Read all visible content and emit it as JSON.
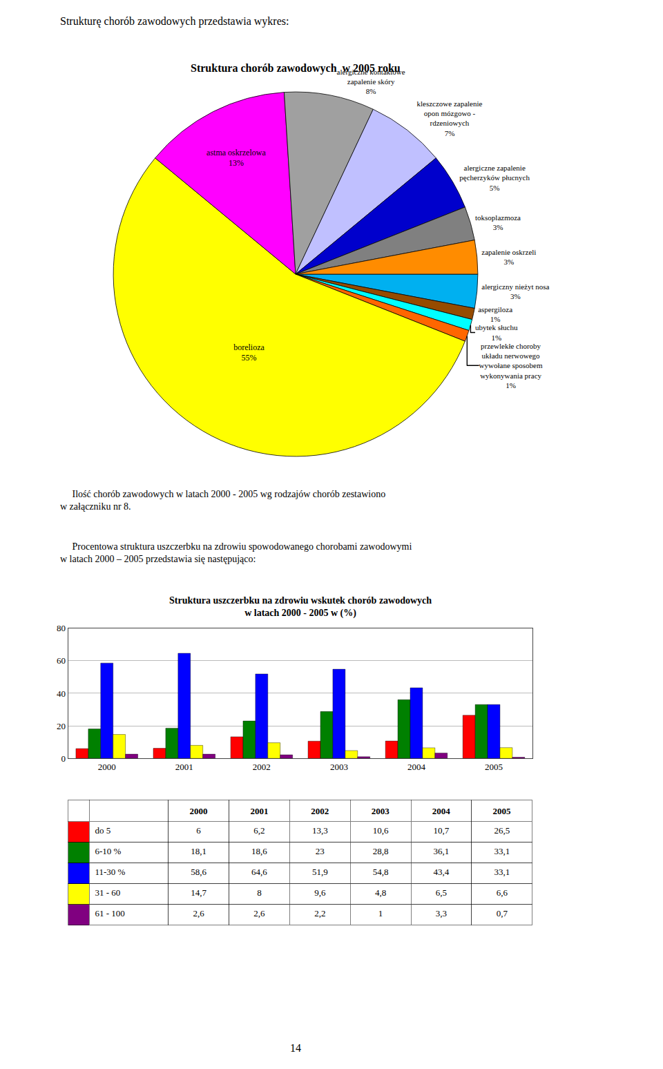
{
  "title": "Strukturę chorób zawodowych przedstawia wykres:",
  "texts": [
    "     Ilość chorób zawodowych w latach 2000 - 2005 wg rodzajów chorób zestawiono\nw załączniku nr 8.",
    "     Procentowa struktura uszczerbku na zdrowiu spowodowanego chorobami zawodowymi\nw latach 2000 – 2005 przedstawia się następująco:"
  ],
  "page_number": "14",
  "chart_data": [
    {
      "type": "pie",
      "title": "Struktura chorób zawodowych  w 2005 roku",
      "categories": [
        "alergiczny nieżyt nosa",
        "aspergiloza",
        "ubytek słuchu",
        "przewlekłe choroby\nukładu nerwowego\nwywołane sposobem\nwykonywania pracy",
        "borelioza",
        "astma oskrzelowa",
        "alergiczne kontaktowe\nzapalenie skóry",
        "kleszczowe zapalenie\nopon mózgowo -\nrdzeniowych",
        "alergiczne zapalenie\npęcherzyków płucnych",
        "toksoplazmoza",
        "zapalenie oskrzeli"
      ],
      "values": [
        3,
        1,
        1,
        1,
        55,
        13,
        8,
        7,
        5,
        3,
        3
      ],
      "value_labels": [
        "3%",
        "1%",
        "1%",
        "1%",
        "55%",
        "13%",
        "8%",
        "7%",
        "5%",
        "3%",
        "3%"
      ],
      "colors": [
        "#00B0F0",
        "#964B00",
        "#00FFFF",
        "#FF6600",
        "#FFFF00",
        "#FF00FF",
        "#A0A0A0",
        "#C0C0FF",
        "#0000CC",
        "#808080",
        "#FF8C00"
      ]
    },
    {
      "type": "bar",
      "title": "Struktura uszczerbku na zdrowiu wskutek chorób zawodowych\nw latach 2000 - 2005 w (%)",
      "categories": [
        "2000",
        "2001",
        "2002",
        "2003",
        "2004",
        "2005"
      ],
      "series": [
        {
          "name": "do 5",
          "color": "#FF0000",
          "values": [
            6,
            6.2,
            13.3,
            10.6,
            10.7,
            26.5
          ],
          "value_labels": [
            "6",
            "6,2",
            "13,3",
            "10,6",
            "10,7",
            "26,5"
          ]
        },
        {
          "name": "6-10 %",
          "color": "#008000",
          "values": [
            18.1,
            18.6,
            23,
            28.8,
            36.1,
            33.1
          ],
          "value_labels": [
            "18,1",
            "18,6",
            "23",
            "28,8",
            "36,1",
            "33,1"
          ]
        },
        {
          "name": "11-30 %",
          "color": "#0000FF",
          "values": [
            58.6,
            64.6,
            51.9,
            54.8,
            43.4,
            33.1
          ],
          "value_labels": [
            "58,6",
            "64,6",
            "51,9",
            "54,8",
            "43,4",
            "33,1"
          ]
        },
        {
          "name": "31 - 60",
          "color": "#FFFF00",
          "values": [
            14.7,
            8,
            9.6,
            4.8,
            6.5,
            6.6
          ],
          "value_labels": [
            "14,7",
            "8",
            "9,6",
            "4,8",
            "6,5",
            "6,6"
          ]
        },
        {
          "name": "61 - 100",
          "color": "#800080",
          "values": [
            2.6,
            2.6,
            2.2,
            1,
            3.3,
            0.7
          ],
          "value_labels": [
            "2,6",
            "2,6",
            "2,2",
            "1",
            "3,3",
            "0,7"
          ]
        }
      ],
      "ylim": [
        0,
        80
      ],
      "yticks": [
        0,
        20,
        40,
        60,
        80
      ],
      "grid": true
    }
  ]
}
